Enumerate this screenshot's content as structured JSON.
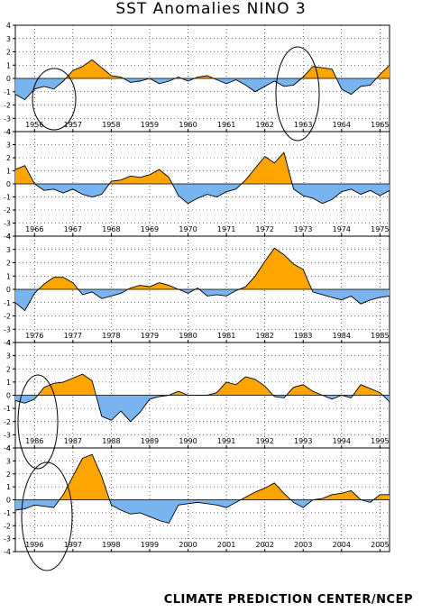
{
  "title": "SST Anomalies NINO 3",
  "credit": "CLIMATE PREDICTION CENTER/NCEP",
  "colors": {
    "positive": "#ffa500",
    "negative": "#78b4f0",
    "line": "#000000",
    "grid": "#000000",
    "annotation": "#000000"
  },
  "chart_data": [
    {
      "type": "area",
      "ylim": [
        -4,
        4
      ],
      "yticks": [
        -4,
        -3,
        -2,
        -1,
        0,
        1,
        2,
        3,
        4
      ],
      "xlim": [
        1956,
        1965.75
      ],
      "xticks": [
        "1956",
        "1957",
        "1958",
        "1959",
        "1960",
        "1961",
        "1962",
        "1963",
        "1964",
        "1965"
      ],
      "grid": true,
      "annotations": [
        "ellipse around 1957",
        "ellipse around 1963"
      ],
      "series": [
        {
          "x": [
            1956.0,
            1956.25,
            1956.5,
            1956.75,
            1957.0,
            1957.25,
            1957.5,
            1957.75,
            1958.0,
            1958.25,
            1958.5,
            1958.75,
            1959.0,
            1959.25,
            1959.5,
            1959.75,
            1960.0,
            1960.25,
            1960.5,
            1960.75,
            1961.0,
            1961.25,
            1961.5,
            1961.75,
            1962.0,
            1962.25,
            1962.5,
            1962.75,
            1963.0,
            1963.25,
            1963.5,
            1963.75,
            1964.0,
            1964.25,
            1964.5,
            1964.75,
            1965.0,
            1965.25,
            1965.5,
            1965.75
          ],
          "y": [
            -1.2,
            -1.6,
            -0.8,
            -0.6,
            -0.8,
            -0.2,
            0.6,
            0.9,
            1.4,
            0.8,
            0.2,
            0.1,
            -0.3,
            -0.2,
            0.0,
            -0.4,
            -0.2,
            0.1,
            -0.2,
            0.1,
            0.2,
            -0.1,
            -0.4,
            -0.1,
            -0.5,
            -1.0,
            -0.6,
            -0.2,
            -0.6,
            -0.5,
            0.1,
            0.9,
            0.8,
            0.7,
            -0.8,
            -1.2,
            -0.6,
            -0.5,
            0.3,
            1.0
          ]
        }
      ]
    },
    {
      "type": "area",
      "ylim": [
        -4,
        4
      ],
      "yticks": [
        -4,
        -3,
        -2,
        -1,
        0,
        1,
        2,
        3,
        4
      ],
      "xlim": [
        1966,
        1975.75
      ],
      "xticks": [
        "1966",
        "1967",
        "1968",
        "1969",
        "1970",
        "1971",
        "1972",
        "1973",
        "1974",
        "1975"
      ],
      "grid": true,
      "series": [
        {
          "x": [
            1966.0,
            1966.25,
            1966.5,
            1966.75,
            1967.0,
            1967.25,
            1967.5,
            1967.75,
            1968.0,
            1968.25,
            1968.5,
            1968.75,
            1969.0,
            1969.25,
            1969.5,
            1969.75,
            1970.0,
            1970.25,
            1970.5,
            1970.75,
            1971.0,
            1971.25,
            1971.5,
            1971.75,
            1972.0,
            1972.25,
            1972.5,
            1972.75,
            1973.0,
            1973.25,
            1973.5,
            1973.75,
            1974.0,
            1974.25,
            1974.5,
            1974.75,
            1975.0,
            1975.25,
            1975.5,
            1975.75
          ],
          "y": [
            1.1,
            1.4,
            0.0,
            -0.5,
            -0.4,
            -0.7,
            -0.4,
            -0.8,
            -1.0,
            -0.8,
            0.2,
            0.3,
            0.6,
            0.5,
            0.7,
            1.1,
            0.5,
            -0.9,
            -1.5,
            -1.1,
            -0.8,
            -1.0,
            -0.6,
            -0.4,
            0.3,
            1.2,
            2.1,
            1.6,
            2.4,
            -0.4,
            -0.9,
            -1.1,
            -1.5,
            -1.2,
            -0.6,
            -0.4,
            -0.8,
            -0.5,
            -0.9,
            -0.5
          ]
        }
      ]
    },
    {
      "type": "area",
      "ylim": [
        -4,
        4
      ],
      "yticks": [
        -4,
        -3,
        -2,
        -1,
        0,
        1,
        2,
        3,
        4
      ],
      "xlim": [
        1976,
        1985.75
      ],
      "xticks": [
        "1976",
        "1977",
        "1978",
        "1979",
        "1980",
        "1981",
        "1982",
        "1983",
        "1984",
        "1985"
      ],
      "grid": true,
      "series": [
        {
          "x": [
            1976.0,
            1976.25,
            1976.5,
            1976.75,
            1977.0,
            1977.25,
            1977.5,
            1977.75,
            1978.0,
            1978.25,
            1978.5,
            1978.75,
            1979.0,
            1979.25,
            1979.5,
            1979.75,
            1980.0,
            1980.25,
            1980.5,
            1980.75,
            1981.0,
            1981.25,
            1981.5,
            1981.75,
            1982.0,
            1982.25,
            1982.5,
            1982.75,
            1983.0,
            1983.25,
            1983.5,
            1983.75,
            1984.0,
            1984.25,
            1984.5,
            1984.75,
            1985.0,
            1985.25,
            1985.5,
            1985.75
          ],
          "y": [
            -1.0,
            -1.6,
            -0.3,
            0.4,
            0.9,
            0.9,
            0.5,
            -0.4,
            -0.2,
            -0.7,
            -0.5,
            -0.3,
            0.1,
            0.3,
            0.2,
            0.5,
            0.3,
            0.0,
            -0.3,
            0.1,
            -0.5,
            -0.4,
            -0.5,
            -0.1,
            0.2,
            1.0,
            2.1,
            3.1,
            2.6,
            1.9,
            1.5,
            -0.2,
            -0.4,
            -0.6,
            -0.8,
            -0.5,
            -1.1,
            -0.8,
            -0.6,
            -0.5
          ]
        }
      ]
    },
    {
      "type": "area",
      "ylim": [
        -4,
        4
      ],
      "yticks": [
        -4,
        -3,
        -2,
        -1,
        0,
        1,
        2,
        3,
        4
      ],
      "xlim": [
        1986,
        1995.75
      ],
      "xticks": [
        "1986",
        "1987",
        "1988",
        "1989",
        "1990",
        "1991",
        "1992",
        "1993",
        "1994",
        "1995"
      ],
      "grid": true,
      "annotations": [
        "ellipse around 1986"
      ],
      "series": [
        {
          "x": [
            1986.0,
            1986.25,
            1986.5,
            1986.75,
            1987.0,
            1987.25,
            1987.5,
            1987.75,
            1988.0,
            1988.25,
            1988.5,
            1988.75,
            1989.0,
            1989.25,
            1989.5,
            1989.75,
            1990.0,
            1990.25,
            1990.5,
            1990.75,
            1991.0,
            1991.25,
            1991.5,
            1991.75,
            1992.0,
            1992.25,
            1992.5,
            1992.75,
            1993.0,
            1993.25,
            1993.5,
            1993.75,
            1994.0,
            1994.25,
            1994.5,
            1994.75,
            1995.0,
            1995.25,
            1995.5,
            1995.75
          ],
          "y": [
            -0.4,
            -0.6,
            -0.3,
            0.6,
            0.9,
            1.0,
            1.3,
            1.6,
            1.1,
            -1.6,
            -1.9,
            -1.2,
            -2.0,
            -1.3,
            -0.3,
            -0.1,
            0.0,
            0.3,
            0.0,
            0.0,
            0.0,
            0.2,
            1.0,
            0.8,
            1.4,
            1.2,
            0.7,
            -0.1,
            -0.2,
            0.6,
            0.8,
            0.3,
            0.0,
            -0.3,
            0.0,
            -0.2,
            0.8,
            0.5,
            0.2,
            -0.5
          ]
        }
      ]
    },
    {
      "type": "area",
      "ylim": [
        -4,
        4
      ],
      "yticks": [
        -4,
        -3,
        -2,
        -1,
        0,
        1,
        2,
        3,
        4
      ],
      "xlim": [
        1996,
        2005.75
      ],
      "xticks": [
        "1996",
        "1997",
        "1998",
        "1999",
        "2000",
        "2001",
        "2002",
        "2003",
        "2004",
        "2005"
      ],
      "grid": true,
      "annotations": [
        "ellipse around 1996"
      ],
      "series": [
        {
          "x": [
            1996.0,
            1996.25,
            1996.5,
            1996.75,
            1997.0,
            1997.25,
            1997.5,
            1997.75,
            1998.0,
            1998.25,
            1998.5,
            1998.75,
            1999.0,
            1999.25,
            1999.5,
            1999.75,
            2000.0,
            2000.25,
            2000.5,
            2000.75,
            2001.0,
            2001.25,
            2001.5,
            2001.75,
            2002.0,
            2002.25,
            2002.5,
            2002.75,
            2003.0,
            2003.25,
            2003.5,
            2003.75,
            2004.0,
            2004.25,
            2004.5,
            2004.75,
            2005.0,
            2005.25,
            2005.5,
            2005.75
          ],
          "y": [
            -0.8,
            -0.7,
            -0.4,
            -0.5,
            -0.6,
            0.4,
            1.8,
            3.2,
            3.5,
            1.8,
            -0.4,
            -0.8,
            -1.1,
            -1.0,
            -1.3,
            -1.6,
            -1.8,
            -0.4,
            -0.3,
            -0.2,
            -0.3,
            -0.4,
            -0.6,
            -0.2,
            0.2,
            0.6,
            0.9,
            1.3,
            0.5,
            -0.2,
            -0.6,
            0.0,
            0.1,
            0.4,
            0.5,
            0.7,
            0.0,
            -0.2,
            0.4,
            0.4
          ]
        }
      ]
    }
  ]
}
